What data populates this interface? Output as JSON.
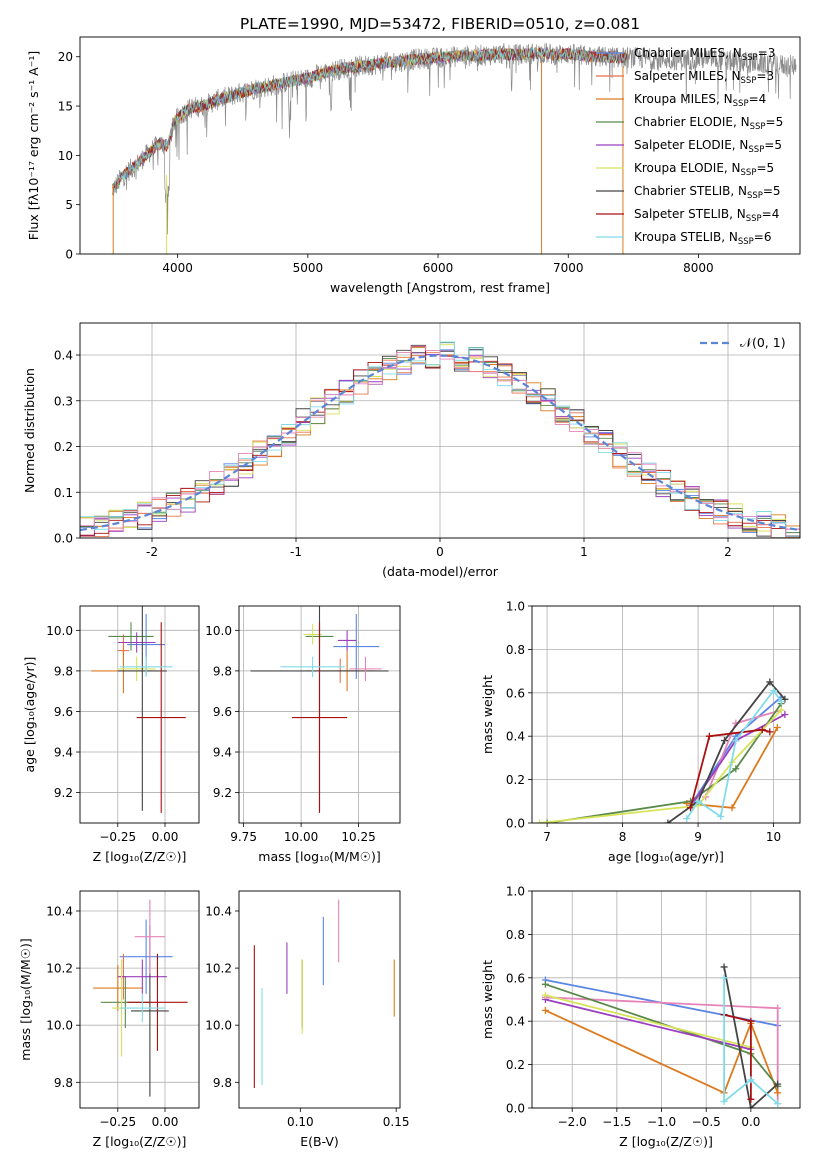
{
  "figure_title": "PLATE=1990, MJD=53472, FIBERID=0510, z=0.081",
  "colors": {
    "chabrier_miles": "#5b86e5",
    "salpeter_miles": "#e8724a",
    "kroupa_miles": "#dc7a1e",
    "chabrier_elodie": "#5a8a4a",
    "salpeter_elodie": "#9b3fbf",
    "kroupa_elodie": "#d7e35a",
    "chabrier_stelib": "#444444",
    "salpeter_stelib": "#aa1010",
    "kroupa_stelib": "#82dbe8",
    "pink": "#e684b8",
    "gaussian": "#5b86d6",
    "grid": "#b0b0b0"
  },
  "chart_data": [
    {
      "id": "spectrum",
      "type": "line",
      "xlabel": "wavelength [Angstrom, rest frame]",
      "ylabel": "Flux [fλ10⁻¹⁷ erg cm⁻² s⁻¹ A⁻¹]",
      "xlim": [
        3250,
        8780
      ],
      "ylim": [
        0,
        22
      ],
      "xticks": [
        4000,
        5000,
        6000,
        7000,
        8000
      ],
      "yticks": [
        0,
        5,
        10,
        15,
        20
      ],
      "grid": false,
      "legend_position": "right",
      "legend": [
        {
          "label": "Chabrier MILES, N",
          "sub": "SSP",
          "value": "=3",
          "color": "#5b86e5"
        },
        {
          "label": "Salpeter MILES, N",
          "sub": "SSP",
          "value": "=3",
          "color": "#e8724a"
        },
        {
          "label": "Kroupa MILES, N",
          "sub": "SSP",
          "value": "=4",
          "color": "#dc7a1e"
        },
        {
          "label": "Chabrier ELODIE, N",
          "sub": "SSP",
          "value": "=5",
          "color": "#5a8a4a"
        },
        {
          "label": "Salpeter ELODIE, N",
          "sub": "SSP",
          "value": "=5",
          "color": "#9b3fbf"
        },
        {
          "label": "Kroupa ELODIE, N",
          "sub": "SSP",
          "value": "=5",
          "color": "#d7e35a"
        },
        {
          "label": "Chabrier STELIB, N",
          "sub": "SSP",
          "value": "=5",
          "color": "#444444"
        },
        {
          "label": "Salpeter STELIB, N",
          "sub": "SSP",
          "value": "=4",
          "color": "#aa1010"
        },
        {
          "label": "Kroupa STELIB, N",
          "sub": "SSP",
          "value": "=6",
          "color": "#82dbe8"
        }
      ],
      "data_series": {
        "name": "data",
        "color": "#8a8a8a",
        "x": [
          3500,
          3530,
          3570,
          3620,
          3680,
          3740,
          3800,
          3860,
          3920,
          3980,
          4050,
          4100,
          4200,
          4300,
          4400,
          4500,
          4600,
          4700,
          4800,
          4900,
          5000,
          5100,
          5200,
          5300,
          5400,
          5500,
          5600,
          5700,
          5800,
          5900,
          6000,
          6100,
          6200,
          6300,
          6400,
          6500,
          6600,
          6700,
          6800,
          6900,
          7000,
          7100,
          7200,
          7300,
          7400,
          7500,
          7600,
          7700,
          7800,
          7900,
          8000,
          8100,
          8200,
          8300,
          8400,
          8500,
          8600,
          8700
        ],
        "y": [
          6.5,
          7.0,
          7.8,
          8.4,
          9.0,
          9.8,
          10.5,
          11.2,
          11.0,
          13.5,
          14.4,
          14.8,
          15.0,
          15.6,
          16.0,
          16.4,
          16.8,
          17.0,
          17.3,
          17.6,
          17.8,
          18.3,
          18.6,
          18.9,
          19.0,
          19.2,
          19.4,
          19.5,
          19.7,
          19.8,
          19.9,
          20.0,
          20.1,
          20.1,
          20.2,
          20.3,
          20.2,
          20.3,
          20.4,
          20.2,
          20.3,
          20.1,
          20.0,
          20.0,
          19.9,
          19.9,
          19.8,
          19.8,
          19.7,
          19.7,
          19.8,
          19.8,
          19.6,
          19.5,
          19.4,
          19.3,
          19.2,
          19.1
        ]
      },
      "model_x_range": [
        3500,
        7450
      ],
      "annotations": []
    },
    {
      "id": "residuals",
      "type": "histogram",
      "xlabel": "(data-model)/error",
      "ylabel": "Normed distribution",
      "xlim": [
        -2.5,
        2.5
      ],
      "ylim": [
        0,
        0.47
      ],
      "xticks": [
        -2,
        -1,
        0,
        1,
        2
      ],
      "yticks": [
        0.0,
        0.1,
        0.2,
        0.3,
        0.4
      ],
      "grid": true,
      "legend_position": "top-right",
      "legend": [
        {
          "label": "𝒩(0, 1)",
          "color": "#5b86d6",
          "style": "dashed"
        }
      ],
      "bin_width": 0.1
    },
    {
      "id": "z_age",
      "type": "errorbar",
      "xlabel": "Z [log₁₀(Z/Z☉)]",
      "ylabel": "age  [log₁₀(age/yr)]",
      "xlim": [
        -0.45,
        0.18
      ],
      "ylim": [
        9.05,
        10.12
      ],
      "xticks": [
        -0.25,
        0.0
      ],
      "xtick_labels": [
        "−0.25",
        "0.00"
      ],
      "yticks": [
        9.2,
        9.4,
        9.6,
        9.8,
        10.0
      ],
      "grid": true,
      "points": [
        {
          "x": -0.1,
          "y": 9.93,
          "xerr": 0.1,
          "yerr": 0.15,
          "color": "#5b86e5"
        },
        {
          "x": -0.22,
          "y": 9.9,
          "xerr": 0.03,
          "yerr": 0.08,
          "color": "#e8724a"
        },
        {
          "x": -0.22,
          "y": 9.8,
          "xerr": 0.17,
          "yerr": 0.11,
          "color": "#dc7a1e"
        },
        {
          "x": -0.18,
          "y": 9.97,
          "xerr": 0.12,
          "yerr": 0.07,
          "color": "#5a8a4a"
        },
        {
          "x": -0.15,
          "y": 9.94,
          "xerr": 0.1,
          "yerr": 0.05,
          "color": "#9b3fbf"
        },
        {
          "x": -0.15,
          "y": 9.81,
          "xerr": 0.1,
          "yerr": 0.06,
          "color": "#d7e35a"
        },
        {
          "x": -0.12,
          "y": 9.8,
          "xerr": 0.13,
          "yerr": 0.69,
          "color": "#444444"
        },
        {
          "x": -0.02,
          "y": 9.57,
          "xerr": 0.13,
          "yerr": 0.47,
          "color": "#aa1010"
        },
        {
          "x": -0.1,
          "y": 9.82,
          "xerr": 0.14,
          "yerr": 0.05,
          "color": "#82dbe8"
        }
      ]
    },
    {
      "id": "mass_age",
      "type": "errorbar",
      "xlabel": "mass [log₁₀(M/M☉)]",
      "ylabel": "",
      "xlim": [
        9.73,
        10.43
      ],
      "ylim": [
        9.05,
        10.12
      ],
      "xticks": [
        9.75,
        10.0,
        10.25
      ],
      "xtick_labels": [
        "9.75",
        "10.00",
        "10.25"
      ],
      "yticks": [
        9.2,
        9.4,
        9.6,
        9.8,
        10.0
      ],
      "grid": true,
      "points": [
        {
          "x": 10.24,
          "y": 9.92,
          "xerr": 0.1,
          "yerr": 0.16,
          "color": "#5b86e5"
        },
        {
          "x": 10.17,
          "y": 9.8,
          "xerr": 0.15,
          "yerr": 0.06,
          "color": "#e8724a"
        },
        {
          "x": 10.2,
          "y": 9.8,
          "xerr": 0.04,
          "yerr": 0.1,
          "color": "#dc7a1e"
        },
        {
          "x": 10.08,
          "y": 9.97,
          "xerr": 0.06,
          "yerr": 0.05,
          "color": "#5a8a4a"
        },
        {
          "x": 10.2,
          "y": 9.95,
          "xerr": 0.04,
          "yerr": 0.05,
          "color": "#9b3fbf"
        },
        {
          "x": 10.05,
          "y": 9.98,
          "xerr": 0.04,
          "yerr": 0.05,
          "color": "#d7e35a"
        },
        {
          "x": 10.08,
          "y": 9.8,
          "xerr": 0.3,
          "yerr": 0.69,
          "color": "#444444"
        },
        {
          "x": 10.08,
          "y": 9.57,
          "xerr": 0.12,
          "yerr": 0.47,
          "color": "#aa1010"
        },
        {
          "x": 10.05,
          "y": 9.82,
          "xerr": 0.14,
          "yerr": 0.05,
          "color": "#82dbe8"
        },
        {
          "x": 10.28,
          "y": 9.81,
          "xerr": 0.07,
          "yerr": 0.06,
          "color": "#e684b8"
        }
      ]
    },
    {
      "id": "age_weight",
      "type": "line",
      "xlabel": "age  [log₁₀(age/yr)]",
      "ylabel": "mass weight",
      "xlim": [
        6.8,
        10.35
      ],
      "ylim": [
        0,
        1.0
      ],
      "xticks": [
        7,
        8,
        9,
        10
      ],
      "yticks": [
        0.0,
        0.2,
        0.4,
        0.6,
        0.8,
        1.0
      ],
      "grid": true,
      "series": [
        {
          "color": "#5b86e5",
          "x": [
            8.9,
            9.5,
            10.1
          ],
          "y": [
            0.08,
            0.4,
            0.58
          ]
        },
        {
          "color": "#e684b8",
          "x": [
            9.1,
            9.5,
            10.1
          ],
          "y": [
            0.12,
            0.46,
            0.52
          ]
        },
        {
          "color": "#dc7a1e",
          "x": [
            8.85,
            9.45,
            10.05
          ],
          "y": [
            0.09,
            0.07,
            0.44
          ]
        },
        {
          "color": "#5a8a4a",
          "x": [
            7.0,
            8.9,
            9.5,
            10.1
          ],
          "y": [
            0.0,
            0.1,
            0.25,
            0.55
          ]
        },
        {
          "color": "#9b3fbf",
          "x": [
            8.95,
            9.5,
            10.15
          ],
          "y": [
            0.1,
            0.38,
            0.5
          ]
        },
        {
          "color": "#d7e35a",
          "x": [
            6.9,
            9.0,
            9.45,
            10.1
          ],
          "y": [
            0.0,
            0.08,
            0.28,
            0.52
          ]
        },
        {
          "color": "#444444",
          "x": [
            8.6,
            9.0,
            9.35,
            9.95,
            10.15
          ],
          "y": [
            0.0,
            0.1,
            0.38,
            0.65,
            0.57
          ]
        },
        {
          "color": "#aa1010",
          "x": [
            8.9,
            9.15,
            9.85,
            9.95
          ],
          "y": [
            0.07,
            0.4,
            0.43,
            0.42
          ]
        },
        {
          "color": "#82dbe8",
          "x": [
            8.85,
            9.0,
            9.3,
            9.5,
            10.0,
            10.1
          ],
          "y": [
            0.02,
            0.1,
            0.03,
            0.38,
            0.61,
            0.56
          ]
        }
      ]
    },
    {
      "id": "z_mass",
      "type": "errorbar",
      "xlabel": "Z [log₁₀(Z/Z☉)]",
      "ylabel": "mass [log₁₀(M/M☉)]",
      "xlim": [
        -0.45,
        0.18
      ],
      "ylim": [
        9.71,
        10.47
      ],
      "xticks": [
        -0.25,
        0.0
      ],
      "xtick_labels": [
        "−0.25",
        "0.00"
      ],
      "yticks": [
        9.8,
        10.0,
        10.2,
        10.4
      ],
      "grid": true,
      "points": [
        {
          "x": -0.1,
          "y": 10.24,
          "xerr": 0.14,
          "yerr": 0.13,
          "color": "#5b86e5"
        },
        {
          "x": -0.22,
          "y": 10.17,
          "xerr": 0.02,
          "yerr": 0.08,
          "color": "#e8724a"
        },
        {
          "x": -0.25,
          "y": 10.13,
          "xerr": 0.13,
          "yerr": 0.08,
          "color": "#dc7a1e"
        },
        {
          "x": -0.21,
          "y": 10.08,
          "xerr": 0.13,
          "yerr": 0.09,
          "color": "#5a8a4a"
        },
        {
          "x": -0.12,
          "y": 10.17,
          "xerr": 0.13,
          "yerr": 0.06,
          "color": "#9b3fbf"
        },
        {
          "x": -0.23,
          "y": 10.06,
          "xerr": 0.05,
          "yerr": 0.17,
          "color": "#d7e35a"
        },
        {
          "x": -0.08,
          "y": 10.05,
          "xerr": 0.1,
          "yerr": 0.3,
          "color": "#444444"
        },
        {
          "x": -0.04,
          "y": 10.08,
          "xerr": 0.16,
          "yerr": 0.17,
          "color": "#aa1010"
        },
        {
          "x": -0.12,
          "y": 10.06,
          "xerr": 0.12,
          "yerr": 0.05,
          "color": "#82dbe8"
        },
        {
          "x": -0.08,
          "y": 10.31,
          "xerr": 0.08,
          "yerr": 0.13,
          "color": "#e684b8"
        }
      ]
    },
    {
      "id": "ebv_mass",
      "type": "errorbar",
      "xlabel": "E(B-V)",
      "ylabel": "",
      "xlim": [
        0.068,
        0.152
      ],
      "ylim": [
        9.71,
        10.47
      ],
      "xticks": [
        0.1,
        0.15
      ],
      "xtick_labels": [
        "0.10",
        "0.15"
      ],
      "yticks": [
        9.8,
        10.0,
        10.2,
        10.4
      ],
      "grid": false,
      "points": [
        {
          "x": 0.112,
          "y": 10.26,
          "xerr": 0,
          "yerr": 0.12,
          "color": "#5b86e5"
        },
        {
          "x": 0.149,
          "y": 10.13,
          "xerr": 0,
          "yerr": 0.1,
          "color": "#dc7a1e"
        },
        {
          "x": 0.101,
          "y": 10.11,
          "xerr": 0,
          "yerr": 0.12,
          "color": "#5a8a4a"
        },
        {
          "x": 0.093,
          "y": 10.2,
          "xerr": 0,
          "yerr": 0.09,
          "color": "#9b3fbf"
        },
        {
          "x": 0.101,
          "y": 10.1,
          "xerr": 0,
          "yerr": 0.13,
          "color": "#d7e35a"
        },
        {
          "x": 0.076,
          "y": 10.03,
          "xerr": 0,
          "yerr": 0.25,
          "color": "#aa1010"
        },
        {
          "x": 0.08,
          "y": 9.96,
          "xerr": 0,
          "yerr": 0.17,
          "color": "#82dbe8"
        },
        {
          "x": 0.12,
          "y": 10.33,
          "xerr": 0,
          "yerr": 0.11,
          "color": "#e684b8"
        }
      ]
    },
    {
      "id": "z_weight",
      "type": "line",
      "xlabel": "Z [log₁₀(Z/Z☉)]",
      "ylabel": "mass weight",
      "xlim": [
        -2.45,
        0.55
      ],
      "ylim": [
        0,
        1.0
      ],
      "xticks": [
        -2.0,
        -1.5,
        -1.0,
        -0.5,
        0.0
      ],
      "xtick_labels": [
        "−2.0",
        "−1.5",
        "−1.0",
        "−0.5",
        "0.0"
      ],
      "yticks": [
        0.0,
        0.2,
        0.4,
        0.6,
        0.8,
        1.0
      ],
      "grid": true,
      "series": [
        {
          "color": "#5b86e5",
          "x": [
            -2.3,
            0.3
          ],
          "y": [
            0.59,
            0.38
          ]
        },
        {
          "color": "#e684b8",
          "x": [
            -2.3,
            0.3,
            0.3
          ],
          "y": [
            0.51,
            0.46,
            0.02
          ]
        },
        {
          "color": "#dc7a1e",
          "x": [
            -2.3,
            -0.3,
            0.0,
            0.3
          ],
          "y": [
            0.45,
            0.07,
            0.39,
            0.07
          ]
        },
        {
          "color": "#5a8a4a",
          "x": [
            -2.3,
            0.0,
            0.3
          ],
          "y": [
            0.57,
            0.25,
            0.1
          ]
        },
        {
          "color": "#9b3fbf",
          "x": [
            -2.3,
            0.0
          ],
          "y": [
            0.5,
            0.27
          ]
        },
        {
          "color": "#d7e35a",
          "x": [
            -2.3,
            0.0
          ],
          "y": [
            0.52,
            0.28
          ]
        },
        {
          "color": "#444444",
          "x": [
            -0.3,
            0.0,
            0.3
          ],
          "y": [
            0.65,
            0.0,
            0.11
          ]
        },
        {
          "color": "#aa1010",
          "x": [
            -0.3,
            0.0,
            0.0
          ],
          "y": [
            0.43,
            0.4,
            0.04
          ]
        },
        {
          "color": "#82dbe8",
          "x": [
            -0.3,
            -0.3,
            0.0,
            0.3
          ],
          "y": [
            0.6,
            0.03,
            0.13,
            0.02
          ]
        }
      ]
    }
  ]
}
